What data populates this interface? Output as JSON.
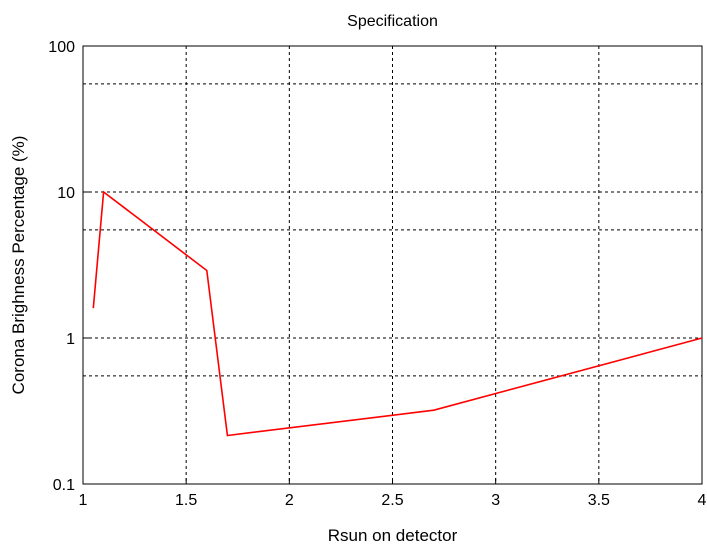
{
  "chart_data": {
    "type": "line",
    "title": "Specification",
    "xlabel": "Rsun on detector",
    "ylabel": "Corona Brighness Percentage (%)",
    "xlim": [
      1,
      4
    ],
    "ylim": [
      0.1,
      100
    ],
    "yscale": "log",
    "grid": true,
    "grid_style": "dashed",
    "x_ticks": [
      1,
      1.5,
      2,
      2.5,
      3,
      3.5,
      4
    ],
    "x_tick_labels": [
      "1",
      "1.5",
      "2",
      "2.5",
      "3",
      "3.5",
      "4"
    ],
    "y_ticks": [
      0.1,
      1,
      10,
      100
    ],
    "y_tick_labels": [
      "0.1",
      "1",
      "10",
      "100"
    ],
    "y_minor_grid": [
      0.55,
      5.5,
      55
    ],
    "series": [
      {
        "color": "#ff0000",
        "x": [
          1.05,
          1.1,
          1.6,
          1.7,
          2.7,
          4.0
        ],
        "y": [
          1.6,
          10,
          2.9,
          0.215,
          0.32,
          1.0
        ]
      }
    ]
  }
}
